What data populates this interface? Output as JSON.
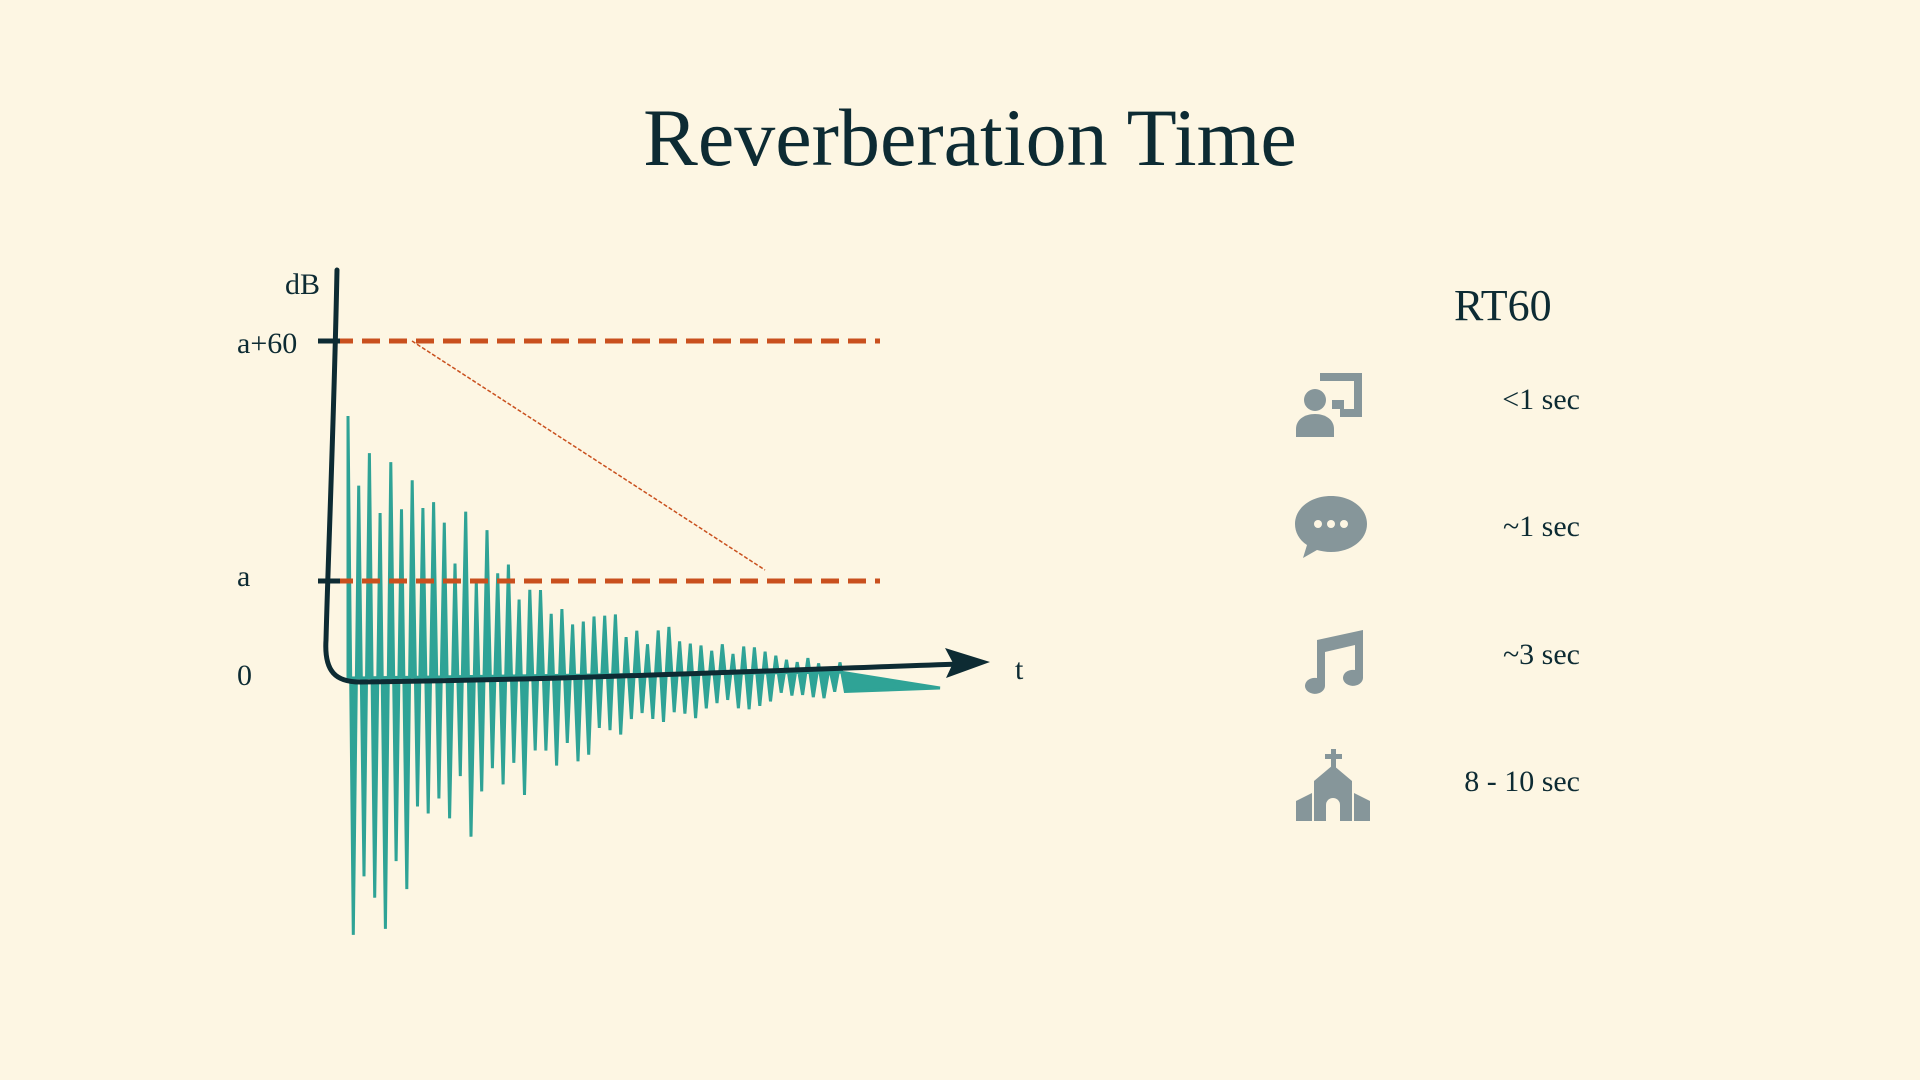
{
  "title": "Reverberation Time",
  "diagram": {
    "y_axis_label": "dB",
    "x_axis_label": "t",
    "levels": [
      {
        "label": "a+60"
      },
      {
        "label": "a"
      },
      {
        "label": "0"
      }
    ],
    "colors": {
      "waveform": "#2fa396",
      "threshold": "#c9501e",
      "axis": "#0d2b33"
    }
  },
  "rt60": {
    "heading": "RT60",
    "icon_color": "#86969a",
    "items": [
      {
        "icon": "classroom-icon",
        "value": "<1 sec"
      },
      {
        "icon": "speech-bubble-icon",
        "value": "~1 sec"
      },
      {
        "icon": "music-note-icon",
        "value": "~3 sec"
      },
      {
        "icon": "church-icon",
        "value": "8 - 10 sec"
      }
    ]
  }
}
